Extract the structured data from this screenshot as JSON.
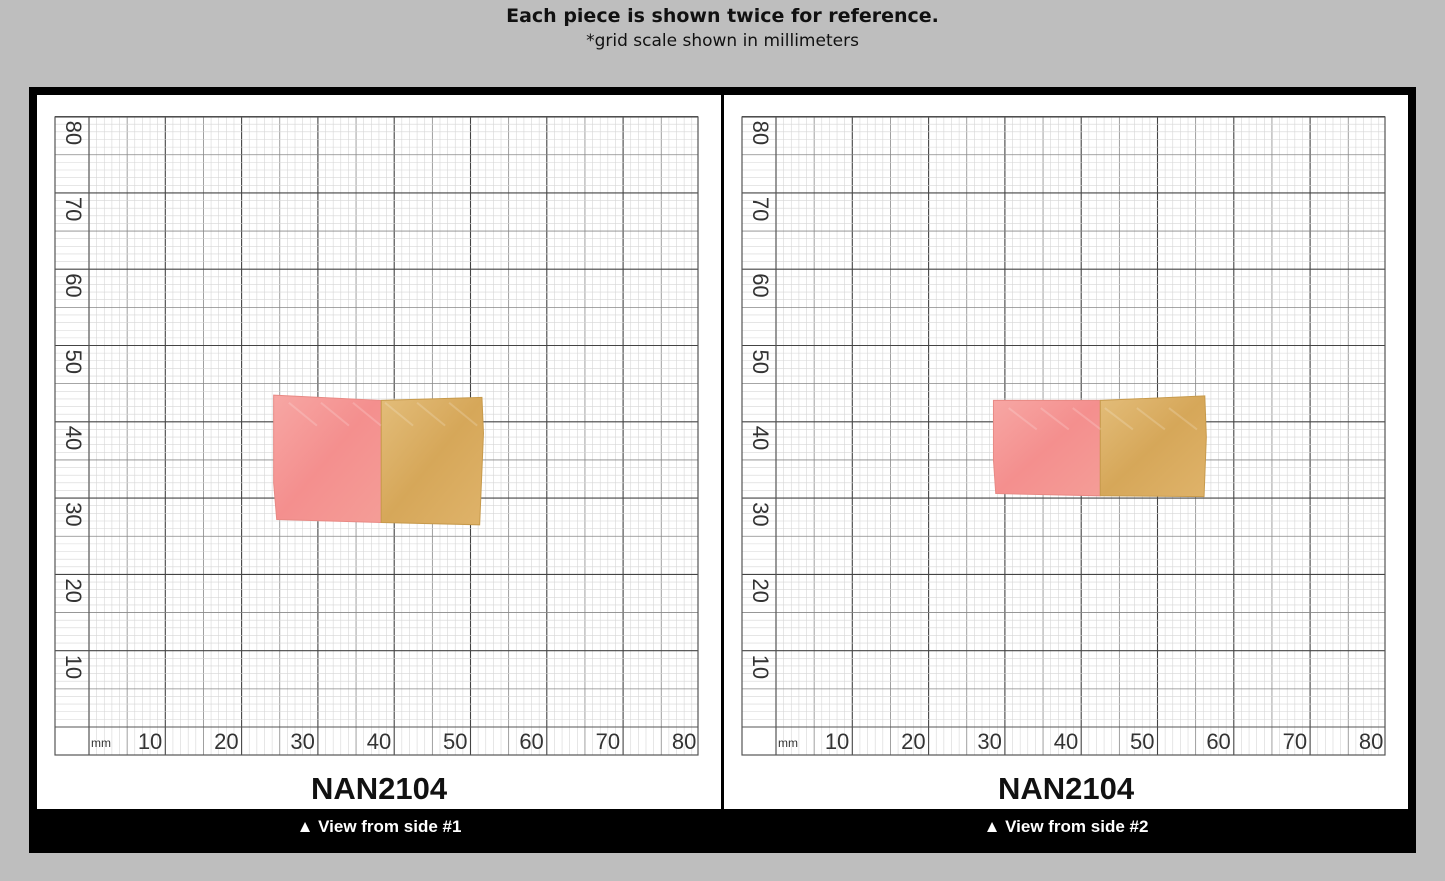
{
  "header": {
    "title": "Each piece is shown twice for reference.",
    "subtitle": "*grid scale shown in millimeters"
  },
  "grid": {
    "unit_label": "mm",
    "x_ticks": [
      "10",
      "20",
      "30",
      "40",
      "50",
      "60",
      "70",
      "80"
    ],
    "y_ticks": [
      "10",
      "20",
      "30",
      "40",
      "50",
      "60",
      "70",
      "80"
    ]
  },
  "views": [
    {
      "code": "NAN2104",
      "caption": "▲ View from side #1"
    },
    {
      "code": "NAN2104",
      "caption": "▲ View from side #2"
    }
  ],
  "colors": {
    "background": "#bebebe",
    "frame": "#000000",
    "stone_pink": "#f59a98",
    "stone_gold": "#d9ae63"
  }
}
